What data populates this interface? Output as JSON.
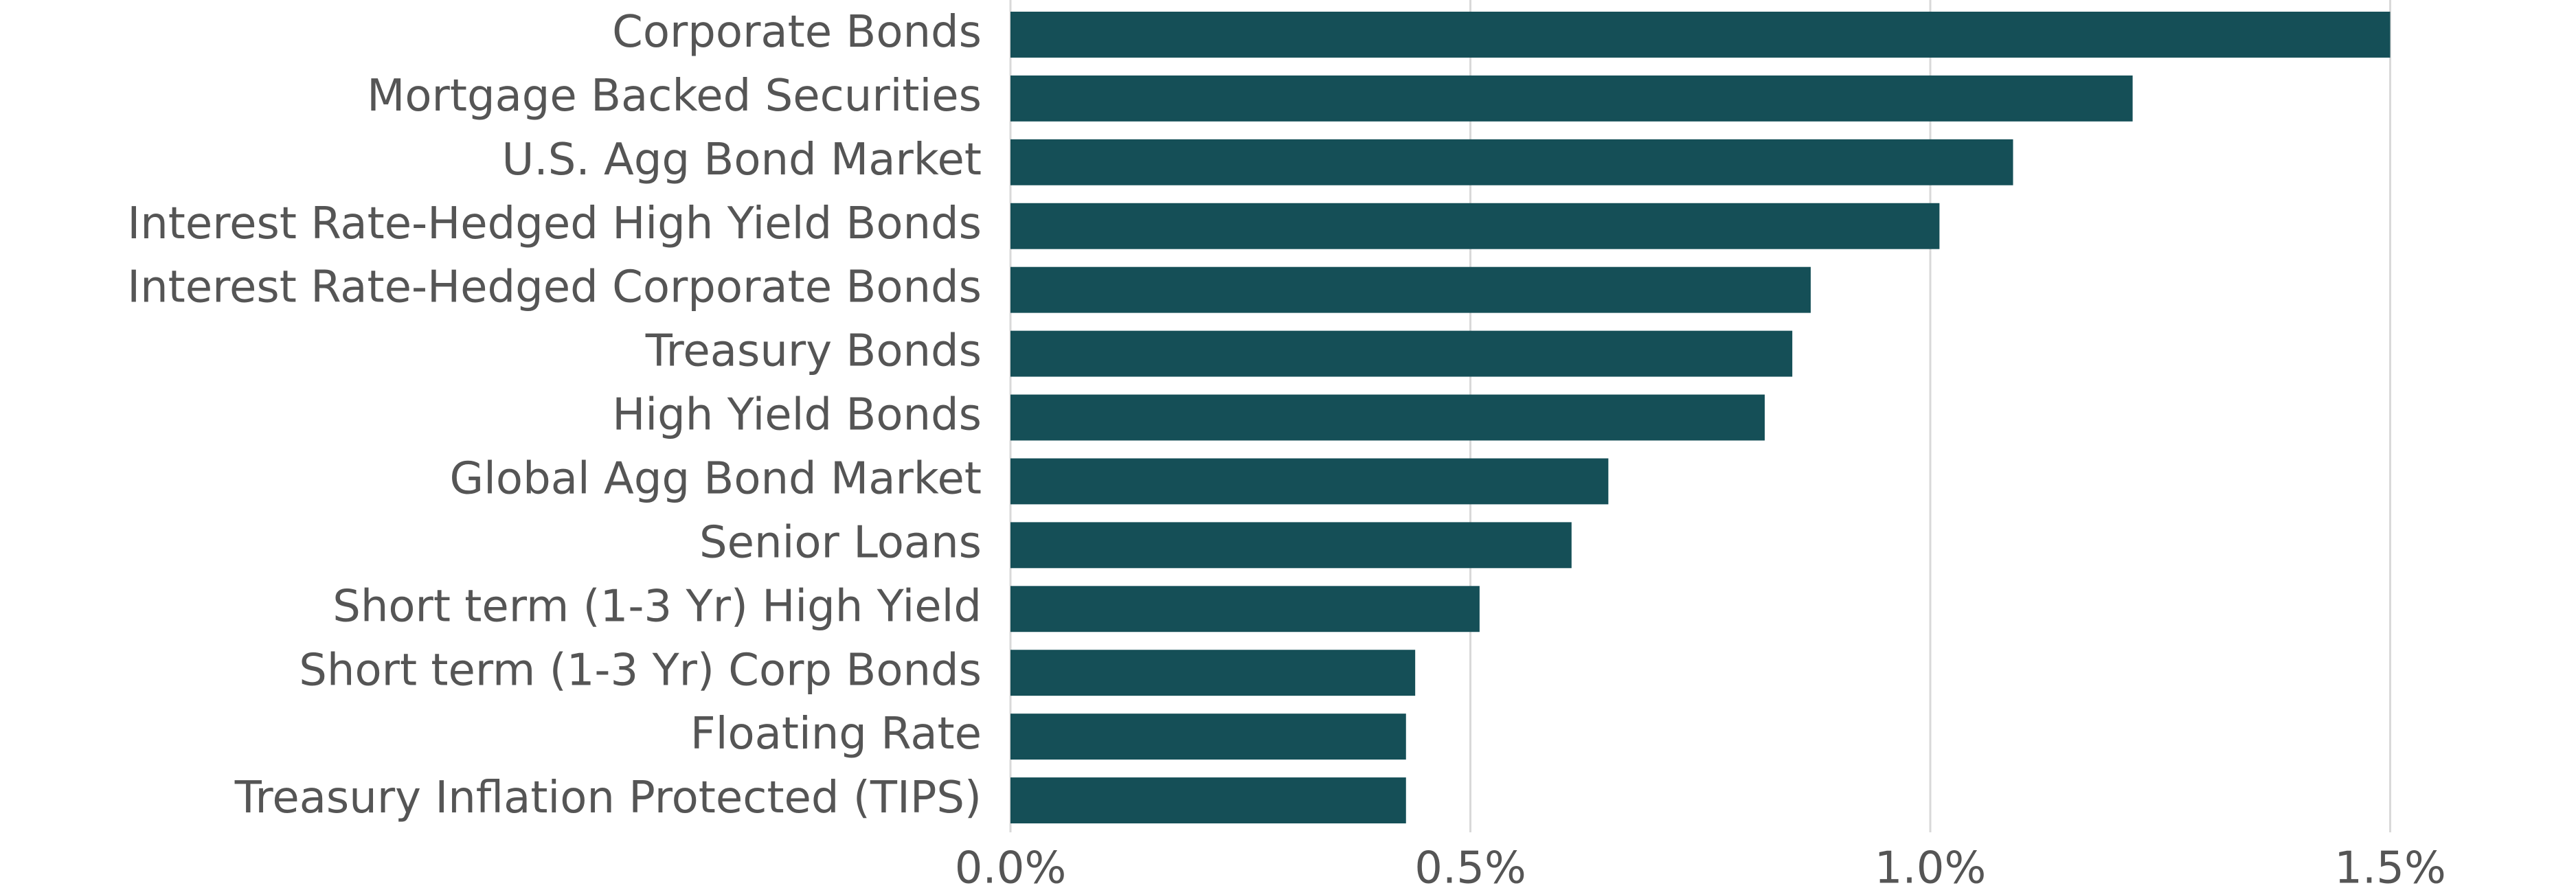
{
  "chart_data": {
    "type": "bar",
    "orientation": "horizontal",
    "categories": [
      "Corporate Bonds",
      "Mortgage Backed Securities",
      "U.S. Agg Bond Market",
      "Interest Rate-Hedged High Yield Bonds",
      "Interest Rate-Hedged Corporate Bonds",
      "Treasury Bonds",
      "High Yield Bonds",
      "Global Agg Bond Market",
      "Senior Loans",
      "Short term (1-3 Yr) High Yield",
      "Short term (1-3 Yr) Corp Bonds",
      "Floating Rate",
      "Treasury Inflation Protected (TIPS)"
    ],
    "values": [
      1.5,
      1.22,
      1.09,
      1.01,
      0.87,
      0.85,
      0.82,
      0.65,
      0.61,
      0.51,
      0.44,
      0.43,
      0.43
    ],
    "color": "#154f57",
    "xlim": [
      0,
      1.7
    ],
    "xticks": [
      {
        "value": 0,
        "label": "0.0%"
      },
      {
        "value": 0.5,
        "label": "0.5%"
      },
      {
        "value": 1.0,
        "label": "1.0%"
      },
      {
        "value": 1.5,
        "label": "1.5%"
      }
    ],
    "grid": true
  }
}
